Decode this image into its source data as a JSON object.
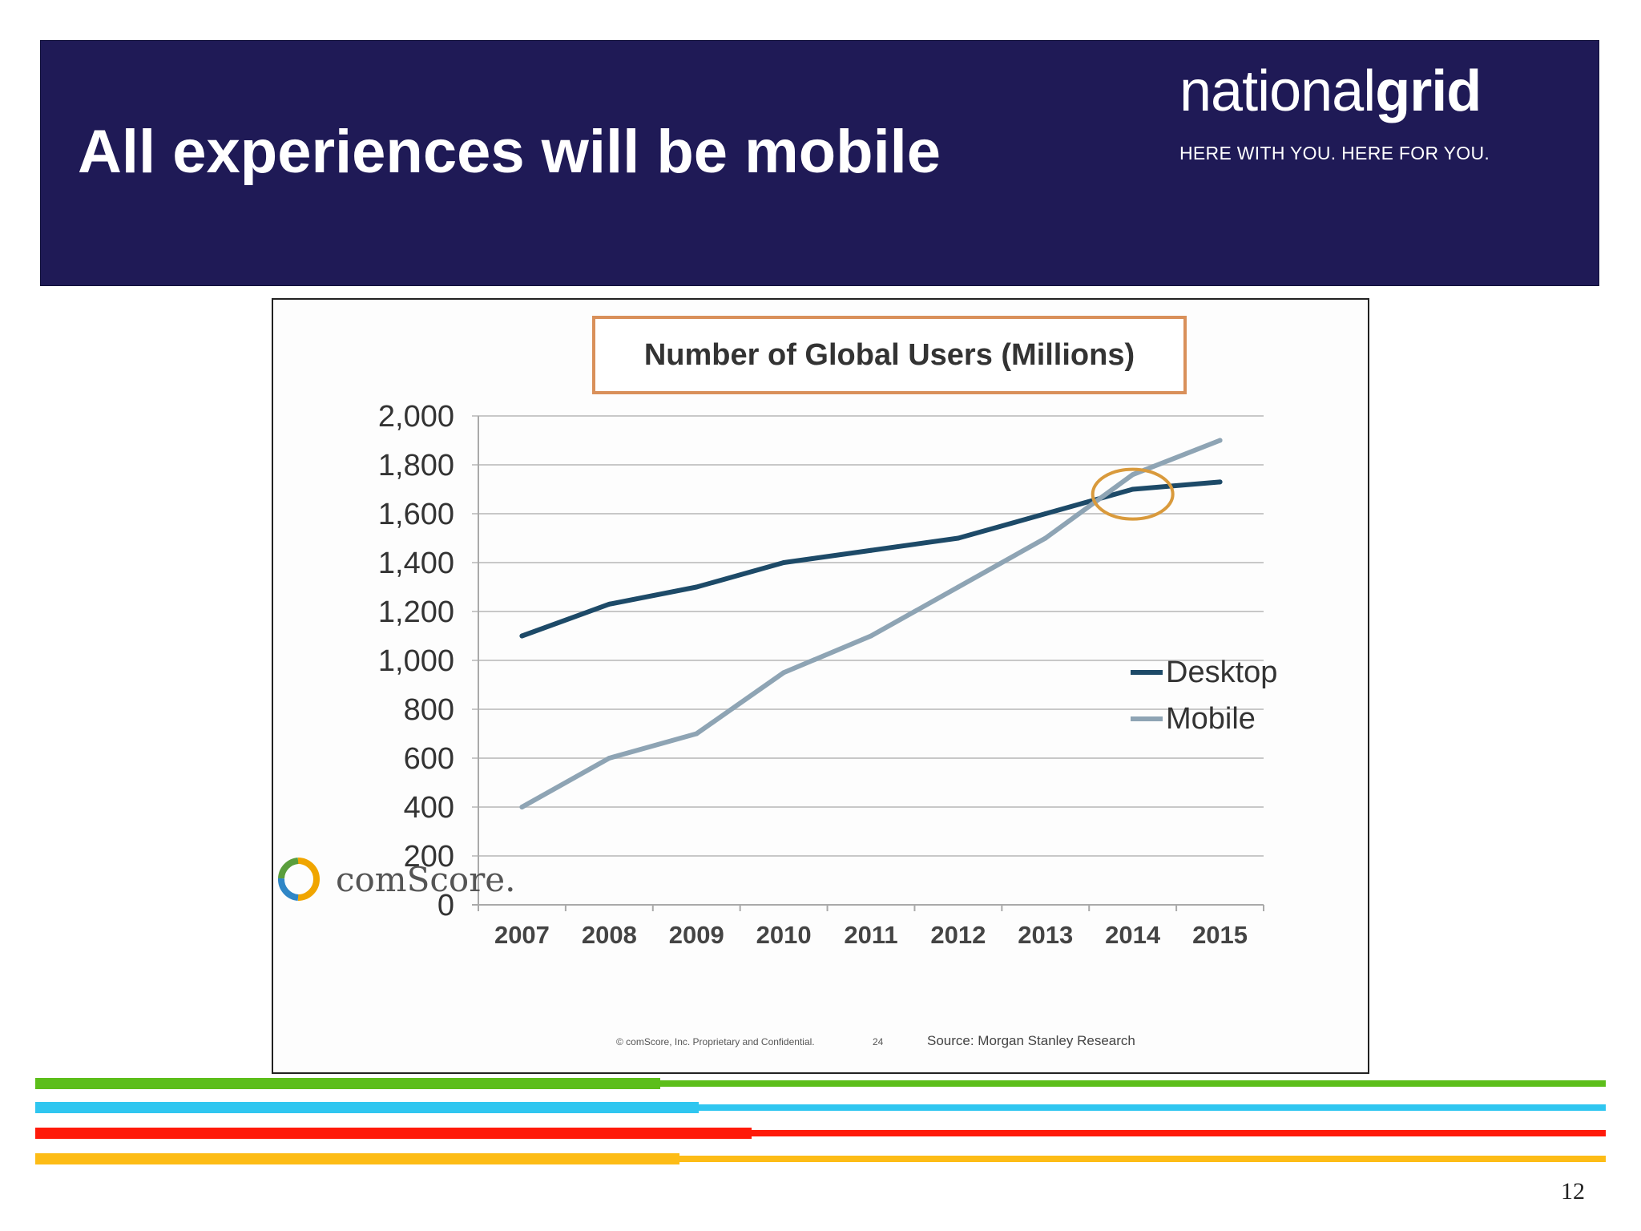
{
  "slide": {
    "title": "All experiences will be mobile",
    "page_number": "12",
    "brand": {
      "name_light": "national",
      "name_bold": "grid",
      "tagline": "HERE WITH YOU. HERE FOR YOU."
    },
    "colors": {
      "header_bg": "#1f1a56",
      "stripes": [
        "#5cbe1a",
        "#2fc6f0",
        "#ff1a0a",
        "#fdbc16"
      ]
    }
  },
  "chart_data": {
    "type": "line",
    "title": "Number of Global Users (Millions)",
    "x": [
      "2007",
      "2008",
      "2009",
      "2010",
      "2011",
      "2012",
      "2013",
      "2014",
      "2015"
    ],
    "series": [
      {
        "name": "Desktop",
        "color": "#1d4a68",
        "values": [
          1100,
          1230,
          1300,
          1400,
          1450,
          1500,
          1600,
          1700,
          1730
        ]
      },
      {
        "name": "Mobile",
        "color": "#8ea4b4",
        "values": [
          400,
          600,
          700,
          950,
          1100,
          1300,
          1500,
          1760,
          1900
        ]
      }
    ],
    "ylim": [
      0,
      2000
    ],
    "yticks": [
      0,
      200,
      400,
      600,
      800,
      1000,
      1200,
      1400,
      1600,
      1800,
      2000
    ],
    "ytick_labels": [
      "0",
      "200",
      "400",
      "600",
      "800",
      "1,000",
      "1,200",
      "1,400",
      "1,600",
      "1,800",
      "2,000"
    ],
    "grid": true,
    "legend_position": "right",
    "highlight": {
      "x": 2014,
      "y": 1680,
      "color": "#d99a3c"
    },
    "footer": {
      "logo_text": "comScore.",
      "copyright": "© comScore, Inc.  Proprietary and Confidential.",
      "page_ref": "24",
      "source": "Source: Morgan Stanley Research"
    }
  }
}
